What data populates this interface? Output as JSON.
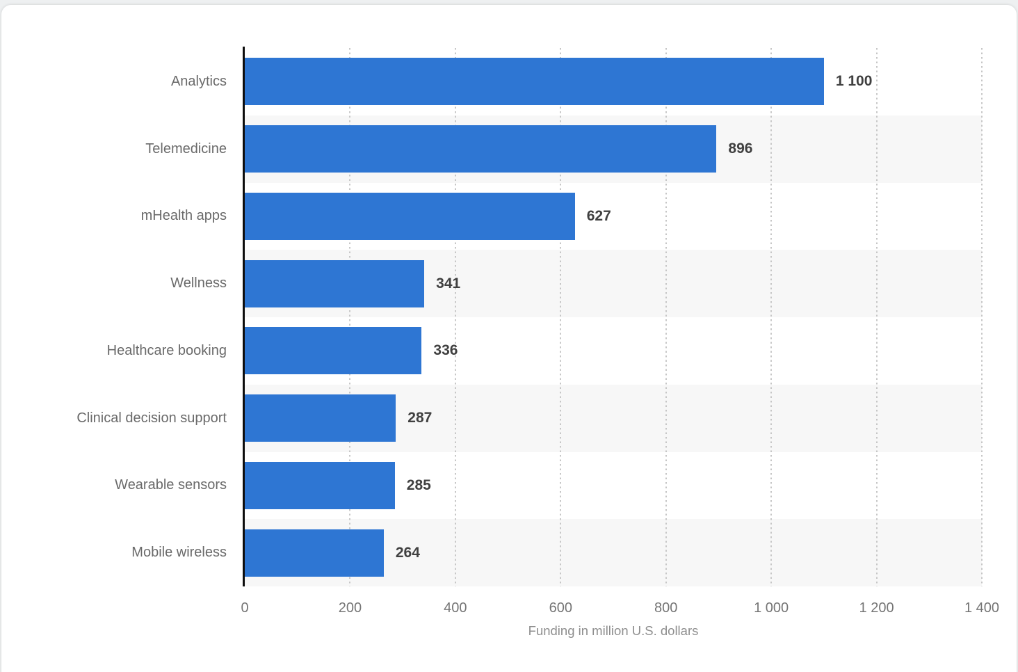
{
  "chart_data": {
    "type": "bar",
    "orientation": "horizontal",
    "categories": [
      "Analytics",
      "Telemedicine",
      "mHealth apps",
      "Wellness",
      "Healthcare booking",
      "Clinical decision support",
      "Wearable sensors",
      "Mobile wireless"
    ],
    "values": [
      1100,
      896,
      627,
      341,
      336,
      287,
      285,
      264
    ],
    "value_labels": [
      "1 100",
      "896",
      "627",
      "341",
      "336",
      "287",
      "285",
      "264"
    ],
    "x_ticks": [
      "0",
      "200",
      "400",
      "600",
      "800",
      "1 000",
      "1 200",
      "1 400"
    ],
    "x_tick_values": [
      0,
      200,
      400,
      600,
      800,
      1000,
      1200,
      1400
    ],
    "xlim": [
      0,
      1400
    ],
    "xlabel": "Funding in million U.S. dollars",
    "title": "",
    "legend": "none",
    "grid": "vertical dotted gridlines at each x tick",
    "row_striping": "alternate rows (2nd, 4th, 6th, 8th) shaded",
    "colors": {
      "bar": "#2e76d3",
      "row_stripe": "#f7f7f7",
      "gridline": "#c7c7c7",
      "axis_line": "#0d0d0d",
      "category_label": "#6a6a6a",
      "value_label": "#404040",
      "tick_label": "#757575",
      "axis_title": "#8e8e8e",
      "card_background": "#ffffff",
      "page_background": "#eef0f1"
    }
  }
}
